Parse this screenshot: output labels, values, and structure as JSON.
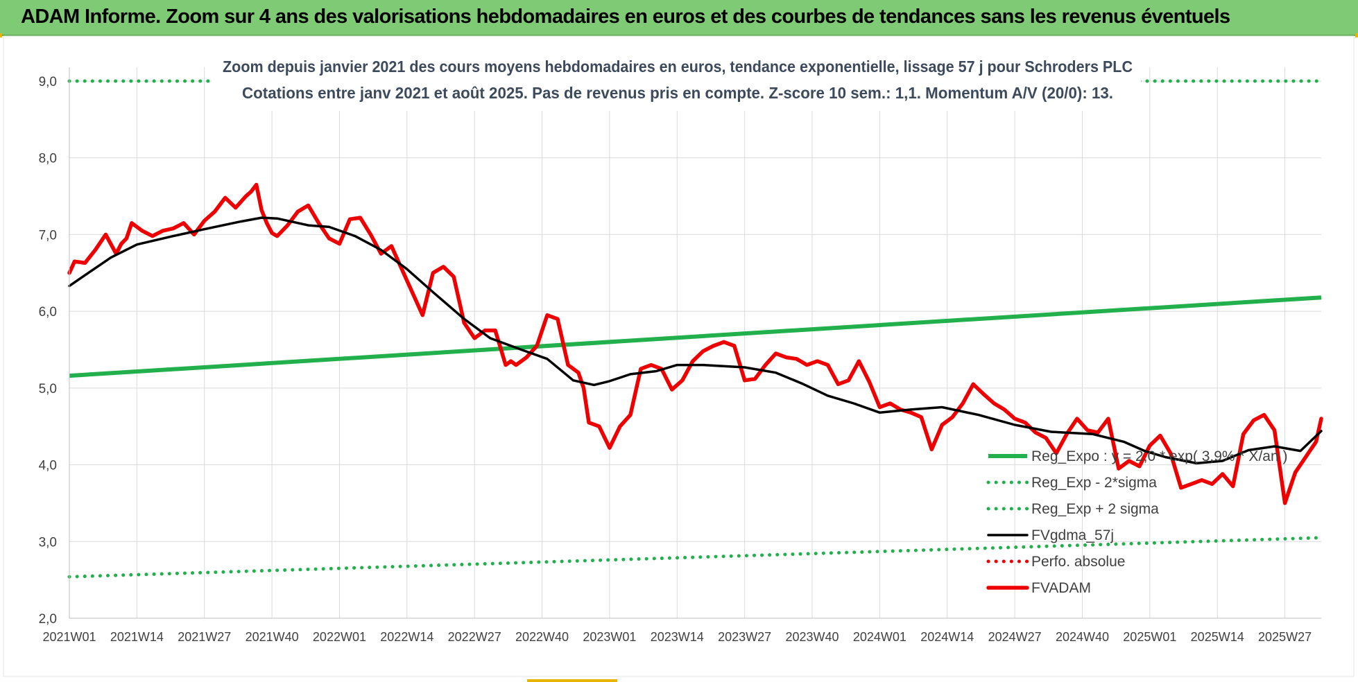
{
  "page": {
    "banner_title": "ADAM Informe. Zoom sur 4 ans des valorisations hebdomadaires en euros et des courbes de tendances sans les revenus éventuels"
  },
  "colors": {
    "banner_bg": "#7fca74",
    "trend": "#22b04c",
    "fvadam": "#ee0000",
    "fvgdma": "#000000",
    "perfo": "#ee0000",
    "grid": "#d9d9d9",
    "axis_text": "#404040",
    "title_text": "#3c4a5c"
  },
  "chart_data": {
    "type": "line",
    "title": "Zoom depuis janvier 2021 des cours moyens hebdomadaires en euros, tendance exponentielle, lissage 57 j pour Schroders PLC",
    "subtitle": "Cotations entre janv 2021 et août 2025.  Pas de revenus pris en compte. Z-score 10 sem.: 1,1. Momentum A/V (20/0): 13.",
    "xlabel": "",
    "ylabel": "",
    "ylim": [
      2.0,
      9.0
    ],
    "yticks": [
      "2,0",
      "3,0",
      "4,0",
      "5,0",
      "6,0",
      "7,0",
      "8,0",
      "9,0"
    ],
    "x_tick_labels": [
      "2021W01",
      "2021W14",
      "2021W27",
      "2021W40",
      "2022W01",
      "2022W14",
      "2022W27",
      "2022W40",
      "2023W01",
      "2023W14",
      "2023W27",
      "2023W40",
      "2024W01",
      "2024W14",
      "2024W27",
      "2024W40",
      "2025W01",
      "2025W14",
      "2025W27"
    ],
    "week_count": 242,
    "grid": true,
    "legend_position": "bottom-right",
    "series": [
      {
        "name": "Reg_Expo : y = 2,0 * exp( 3,9% * X/an )",
        "key": "reg",
        "style": "solid",
        "color": "#22b04c",
        "x": [
          0,
          241
        ],
        "y": [
          5.16,
          6.18
        ]
      },
      {
        "name": "Reg_Exp - 2*sigma",
        "key": "reg_minus",
        "style": "dotted",
        "color": "#22b04c",
        "x": [
          0,
          241
        ],
        "y": [
          2.54,
          3.05
        ]
      },
      {
        "name": "Reg_Exp + 2 sigma",
        "key": "reg_plus",
        "style": "dotted",
        "color": "#22b04c",
        "x": [
          0,
          241
        ],
        "y": [
          9.0,
          9.0
        ]
      },
      {
        "name": "FVgdma_57j",
        "key": "fvgdma",
        "style": "solid",
        "color": "#000000",
        "x": [
          0,
          3,
          8,
          13,
          20,
          26,
          33,
          37,
          40,
          46,
          50,
          55,
          60,
          65,
          70,
          76,
          81,
          87,
          92,
          97,
          101,
          104,
          108,
          113,
          117,
          122,
          130,
          136,
          141,
          146,
          151,
          156,
          162,
          168,
          175,
          182,
          189,
          197,
          203,
          207,
          211,
          217,
          222,
          227,
          232,
          237,
          241
        ],
        "y": [
          6.33,
          6.47,
          6.7,
          6.87,
          6.98,
          7.07,
          7.17,
          7.22,
          7.21,
          7.12,
          7.1,
          6.98,
          6.8,
          6.55,
          6.25,
          5.9,
          5.65,
          5.5,
          5.38,
          5.1,
          5.04,
          5.09,
          5.18,
          5.22,
          5.3,
          5.3,
          5.27,
          5.2,
          5.06,
          4.9,
          4.8,
          4.68,
          4.72,
          4.75,
          4.65,
          4.52,
          4.43,
          4.4,
          4.3,
          4.18,
          4.1,
          4.02,
          4.05,
          4.19,
          4.24,
          4.18,
          4.44
        ]
      },
      {
        "name": "Perfo. absolue",
        "key": "perfo",
        "style": "dotted",
        "color": "#ee0000",
        "x": [],
        "y": []
      },
      {
        "name": "FVADAM",
        "key": "fvadam",
        "style": "solid",
        "color": "#ee0000",
        "x": [
          0,
          1,
          3,
          5,
          7,
          9,
          10,
          11,
          12,
          14,
          16,
          18,
          20,
          22,
          24,
          26,
          28,
          30,
          32,
          34,
          35,
          36,
          37,
          38,
          39,
          40,
          42,
          44,
          46,
          48,
          50,
          52,
          54,
          56,
          58,
          60,
          62,
          64,
          66,
          68,
          70,
          72,
          74,
          76,
          78,
          80,
          82,
          84,
          85,
          86,
          88,
          90,
          92,
          94,
          96,
          98,
          99,
          100,
          102,
          104,
          106,
          108,
          110,
          112,
          114,
          116,
          118,
          120,
          122,
          124,
          126,
          128,
          130,
          132,
          134,
          136,
          138,
          140,
          142,
          144,
          146,
          148,
          150,
          152,
          154,
          156,
          158,
          160,
          162,
          164,
          166,
          168,
          170,
          172,
          174,
          176,
          178,
          180,
          182,
          184,
          186,
          188,
          190,
          192,
          194,
          196,
          198,
          200,
          202,
          204,
          206,
          208,
          210,
          212,
          214,
          216,
          218,
          220,
          222,
          224,
          226,
          228,
          230,
          232,
          234,
          236,
          238,
          240,
          241
        ],
        "y": [
          6.5,
          6.65,
          6.63,
          6.8,
          7.0,
          6.75,
          6.88,
          6.95,
          7.15,
          7.05,
          6.98,
          7.05,
          7.08,
          7.15,
          7.0,
          7.18,
          7.3,
          7.48,
          7.35,
          7.5,
          7.56,
          7.65,
          7.32,
          7.15,
          7.02,
          6.98,
          7.12,
          7.3,
          7.38,
          7.15,
          6.95,
          6.88,
          7.2,
          7.22,
          7.0,
          6.75,
          6.85,
          6.55,
          6.25,
          5.95,
          6.5,
          6.58,
          6.45,
          5.85,
          5.65,
          5.75,
          5.75,
          5.3,
          5.35,
          5.3,
          5.4,
          5.55,
          5.95,
          5.9,
          5.3,
          5.2,
          5.0,
          4.55,
          4.5,
          4.22,
          4.5,
          4.65,
          5.25,
          5.3,
          5.25,
          4.98,
          5.1,
          5.35,
          5.48,
          5.55,
          5.6,
          5.55,
          5.1,
          5.12,
          5.3,
          5.45,
          5.4,
          5.38,
          5.3,
          5.35,
          5.3,
          5.05,
          5.1,
          5.35,
          5.08,
          4.75,
          4.8,
          4.72,
          4.68,
          4.62,
          4.2,
          4.52,
          4.62,
          4.8,
          5.05,
          4.92,
          4.8,
          4.72,
          4.6,
          4.55,
          4.42,
          4.35,
          4.15,
          4.4,
          4.6,
          4.45,
          4.42,
          4.6,
          3.95,
          4.05,
          3.98,
          4.25,
          4.38,
          4.15,
          3.7,
          3.75,
          3.8,
          3.75,
          3.88,
          3.72,
          4.4,
          4.58,
          4.65,
          4.45,
          3.5,
          3.9,
          4.1,
          4.3,
          4.6
        ]
      }
    ]
  }
}
